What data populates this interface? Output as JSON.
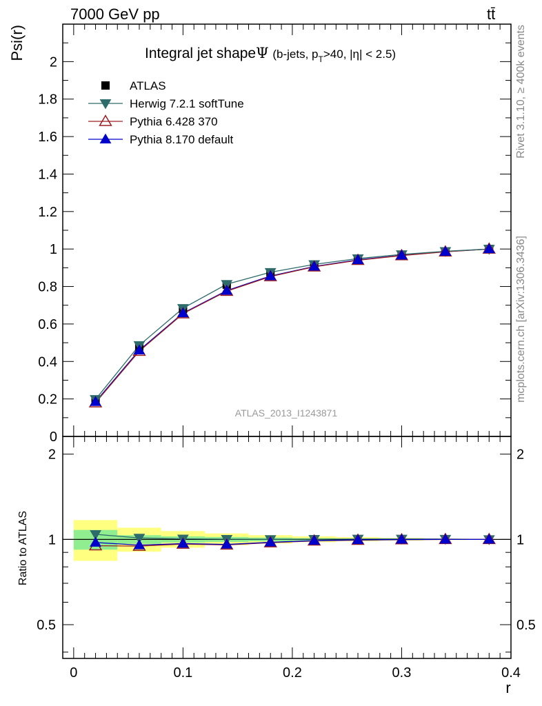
{
  "header": {
    "left": "7000 GeV pp",
    "right": "tt̄"
  },
  "side_text": {
    "upper": "Rivet 3.1.10, ≥ 400k events",
    "lower": "mcplots.cern.ch [arXiv:1306.3436]"
  },
  "chart_data": [
    {
      "type": "line",
      "title": "Integral jet shape",
      "title_symbol": "Ψ",
      "title_cut_prefix": "(b-jets, p",
      "title_cut_sub": "T",
      "title_cut_suffix": ">40, |η| < 2.5)",
      "ylabel": "Psi(r)",
      "xlabel": "r",
      "watermark": "ATLAS_2013_I1243871",
      "xlim": [
        -0.01,
        0.4
      ],
      "ylim": [
        0,
        2.2
      ],
      "y_ticks": [
        "0",
        "0.2",
        "0.4",
        "0.6",
        "0.8",
        "1",
        "1.2",
        "1.4",
        "1.6",
        "1.8",
        "2"
      ],
      "x": [
        0.02,
        0.06,
        0.1,
        0.14,
        0.18,
        0.22,
        0.26,
        0.3,
        0.34,
        0.38
      ],
      "x_edges": [
        0.0,
        0.04,
        0.08,
        0.12,
        0.16,
        0.2,
        0.24,
        0.28,
        0.32,
        0.36,
        0.4
      ],
      "legend_position": "top-left",
      "series": [
        {
          "name": "ATLAS",
          "marker": "square",
          "color": "#000000",
          "values": [
            0.19,
            0.48,
            0.68,
            0.81,
            0.875,
            0.915,
            0.945,
            0.967,
            0.985,
            1.0
          ]
        },
        {
          "name": "Herwig 7.2.1 softTune",
          "marker": "triangle-down",
          "color": "#2e6b6b",
          "values": [
            0.198,
            0.486,
            0.684,
            0.812,
            0.876,
            0.918,
            0.949,
            0.971,
            0.988,
            1.0
          ]
        },
        {
          "name": "Pythia 6.428 370",
          "marker": "triangle-up-open",
          "color": "#9b1d20",
          "values": [
            0.18,
            0.455,
            0.655,
            0.775,
            0.853,
            0.905,
            0.94,
            0.965,
            0.985,
            1.0
          ]
        },
        {
          "name": "Pythia 8.170 default",
          "marker": "triangle-up",
          "color": "#0000cc",
          "values": [
            0.185,
            0.46,
            0.658,
            0.778,
            0.856,
            0.907,
            0.942,
            0.966,
            0.986,
            1.0
          ]
        }
      ]
    },
    {
      "type": "line",
      "ylabel": "Ratio to ATLAS",
      "xlabel": "r",
      "xlim": [
        -0.01,
        0.4
      ],
      "ylim": [
        0.38,
        2.31
      ],
      "y_ticks": [
        "0.5",
        "1",
        "2"
      ],
      "x_ticks": [
        "0",
        "0.1",
        "0.2",
        "0.3",
        "0.4"
      ],
      "x": [
        0.02,
        0.06,
        0.1,
        0.14,
        0.18,
        0.22,
        0.26,
        0.3,
        0.34,
        0.38
      ],
      "x_edges": [
        0.0,
        0.04,
        0.08,
        0.12,
        0.16,
        0.2,
        0.24,
        0.28,
        0.32,
        0.36,
        0.4
      ],
      "uncertainty_band_stat_color": "#90ee90",
      "uncertainty_band_total_color": "#ffff80",
      "band_green": [
        [
          0.92,
          1.08
        ],
        [
          0.965,
          1.035
        ],
        [
          0.975,
          1.025
        ],
        [
          0.98,
          1.02
        ],
        [
          0.985,
          1.015
        ],
        [
          0.99,
          1.01
        ],
        [
          0.993,
          1.007
        ],
        [
          0.995,
          1.005
        ],
        [
          0.997,
          1.003
        ],
        [
          0.999,
          1.001
        ]
      ],
      "band_yellow": [
        [
          0.84,
          1.17
        ],
        [
          0.905,
          1.1
        ],
        [
          0.935,
          1.07
        ],
        [
          0.955,
          1.05
        ],
        [
          0.968,
          1.035
        ],
        [
          0.978,
          1.025
        ],
        [
          0.985,
          1.018
        ],
        [
          0.99,
          1.012
        ],
        [
          0.995,
          1.006
        ],
        [
          0.998,
          1.002
        ]
      ],
      "series": [
        {
          "name": "Herwig 7.2.1 softTune",
          "marker": "triangle-down",
          "color": "#2e6b6b",
          "values": [
            1.042,
            1.012,
            1.005,
            1.002,
            1.001,
            1.002,
            1.004,
            1.004,
            1.003,
            1.0
          ]
        },
        {
          "name": "Pythia 6.428 370",
          "marker": "triangle-up-open",
          "color": "#9b1d20",
          "values": [
            0.95,
            0.947,
            0.963,
            0.956,
            0.974,
            0.988,
            0.994,
            0.998,
            1.0,
            1.0
          ]
        },
        {
          "name": "Pythia 8.170 default",
          "marker": "triangle-up",
          "color": "#0000cc",
          "values": [
            0.975,
            0.955,
            0.967,
            0.96,
            0.977,
            0.99,
            0.996,
            0.999,
            1.0,
            1.0
          ]
        }
      ]
    }
  ]
}
